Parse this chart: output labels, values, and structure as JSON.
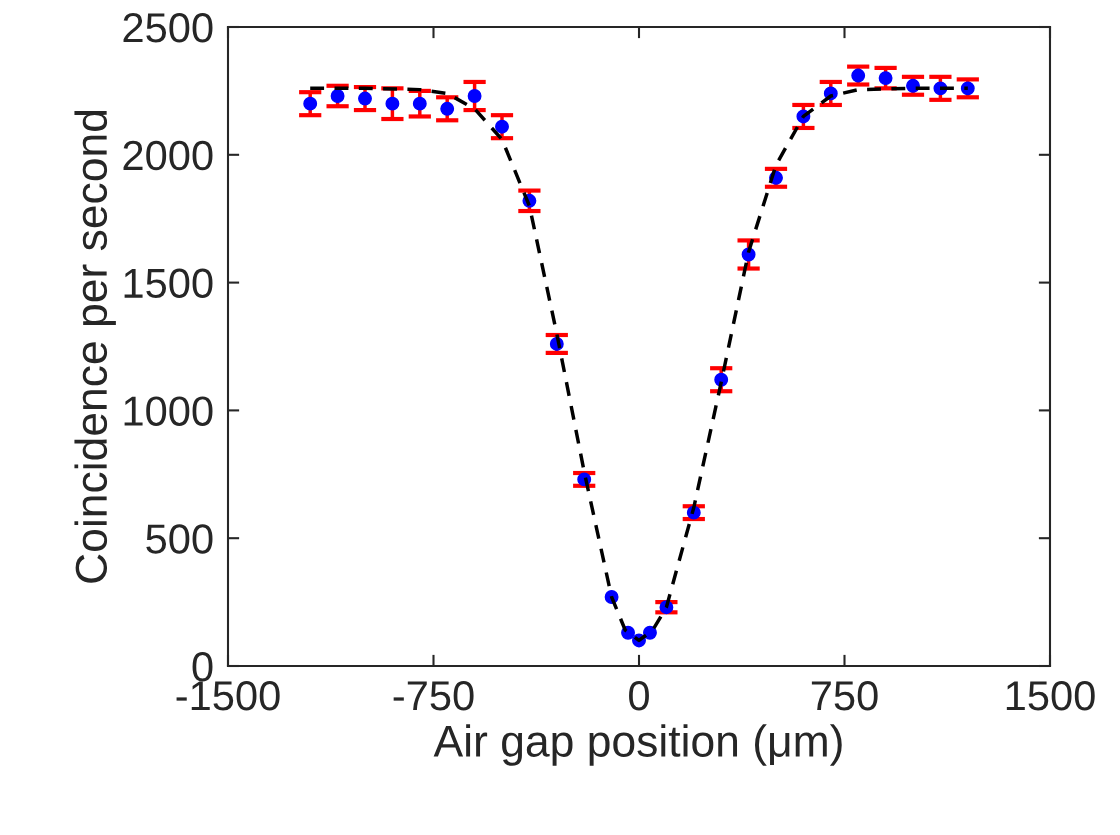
{
  "chart_data": {
    "type": "scatter",
    "xlabel": "Air gap position (μm)",
    "ylabel": "Coincidence per second",
    "xlim": [
      -1500,
      1500
    ],
    "xticks": [
      -1500,
      -750,
      0,
      750,
      1500
    ],
    "ylim": [
      0,
      2500
    ],
    "yticks": [
      0,
      500,
      1000,
      1500,
      2000,
      2500
    ],
    "grid": false,
    "legend": false,
    "series": [
      {
        "color": "#0000ff",
        "marker": "circle",
        "x": [
          -1200,
          -1100,
          -1000,
          -900,
          -800,
          -700,
          -600,
          -500,
          -400,
          -300,
          -200,
          -100,
          -40,
          0,
          40,
          100,
          200,
          300,
          400,
          500,
          600,
          700,
          800,
          900,
          1000,
          1100,
          1200
        ],
        "values": [
          2200,
          2230,
          2220,
          2200,
          2200,
          2180,
          2230,
          2110,
          1820,
          1260,
          730,
          270,
          130,
          100,
          130,
          230,
          600,
          1120,
          1610,
          1910,
          2150,
          2240,
          2310,
          2300,
          2270,
          2260,
          2260
        ],
        "errors": [
          45,
          40,
          45,
          60,
          50,
          45,
          55,
          45,
          40,
          35,
          25,
          null,
          null,
          null,
          null,
          20,
          25,
          45,
          55,
          35,
          45,
          45,
          35,
          40,
          35,
          45,
          35
        ]
      },
      {
        "type": "line",
        "color": "#000000",
        "line_style": "dashed",
        "marker": "none",
        "x": [
          -1200,
          -1000,
          -800,
          -700,
          -600,
          -500,
          -400,
          -300,
          -200,
          -100,
          -50,
          0,
          50,
          100,
          200,
          300,
          400,
          500,
          600,
          700,
          800,
          1000,
          1200
        ],
        "values": [
          2260,
          2260,
          2255,
          2240,
          2180,
          2060,
          1800,
          1300,
          760,
          270,
          140,
          100,
          140,
          230,
          620,
          1110,
          1620,
          1960,
          2150,
          2230,
          2255,
          2260,
          2260
        ]
      }
    ]
  }
}
